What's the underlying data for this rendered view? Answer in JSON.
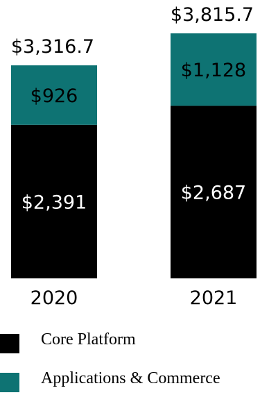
{
  "chart_data": {
    "type": "bar",
    "stacked": true,
    "categories": [
      "2020",
      "2021"
    ],
    "series": [
      {
        "name": "Core Platform",
        "values": [
          2391,
          2687
        ],
        "labels": [
          "$2,391",
          "$2,687"
        ],
        "color": "#000000"
      },
      {
        "name": "Applications & Commerce",
        "values": [
          926,
          1128
        ],
        "labels": [
          "$926",
          "$1,128"
        ],
        "color": "#0E7373"
      }
    ],
    "totals": [
      3316.7,
      3815.7
    ],
    "total_labels": [
      "$3,316.7",
      "$3,815.7"
    ],
    "title": "",
    "xlabel": "",
    "ylabel": "",
    "ylim": [
      0,
      3815.7
    ],
    "grid": false,
    "legend_position": "bottom"
  }
}
